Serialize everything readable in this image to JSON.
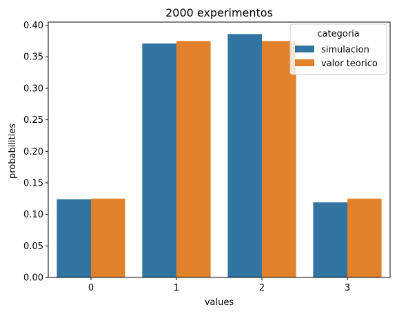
{
  "chart_data": {
    "type": "bar",
    "title": "2000 experimentos",
    "xlabel": "values",
    "ylabel": "probabilities",
    "categories": [
      "0",
      "1",
      "2",
      "3"
    ],
    "series": [
      {
        "name": "simulacion",
        "values": [
          0.124,
          0.371,
          0.386,
          0.119
        ],
        "color": "#3274a1"
      },
      {
        "name": "valor teorico",
        "values": [
          0.125,
          0.375,
          0.375,
          0.125
        ],
        "color": "#e1812c"
      }
    ],
    "ylim": [
      0,
      0.405
    ],
    "yticks": [
      "0.00",
      "0.05",
      "0.10",
      "0.15",
      "0.20",
      "0.25",
      "0.30",
      "0.35",
      "0.40"
    ],
    "legend": {
      "title": "categoria",
      "placement": "top-right"
    },
    "grid": false
  }
}
